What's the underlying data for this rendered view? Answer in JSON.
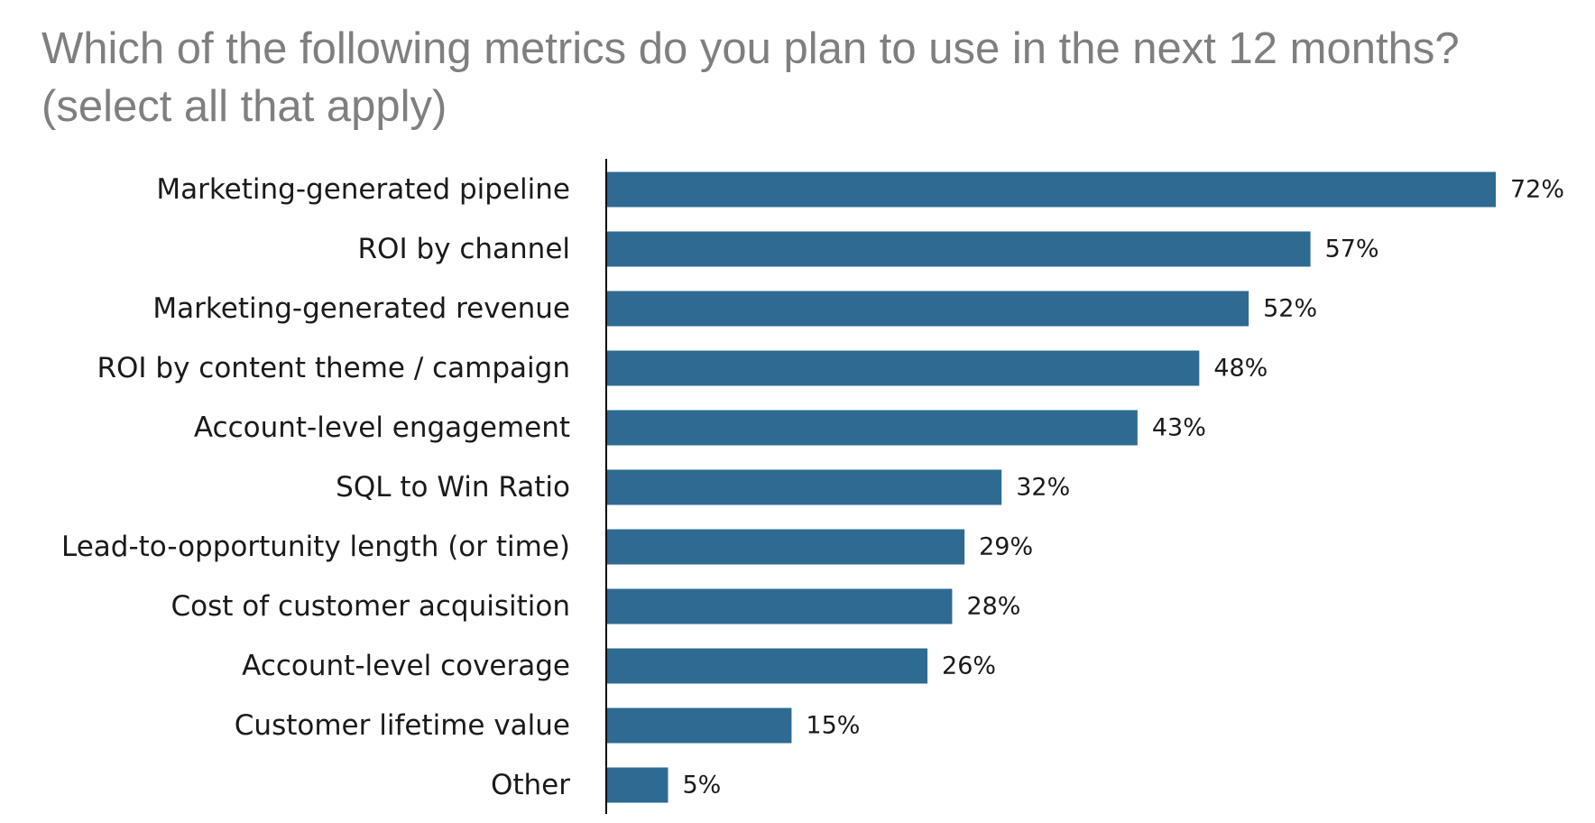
{
  "chart_data": {
    "type": "bar",
    "orientation": "horizontal",
    "title_lines": [
      "Which of the following metrics do you plan to use in the next 12 months?",
      "(select all that apply)"
    ],
    "categories": [
      "Marketing-generated pipeline",
      "ROI by channel",
      "Marketing-generated revenue",
      "ROI by content theme / campaign",
      "Account-level engagement",
      "SQL to Win Ratio",
      "Lead-to-opportunity length (or time)",
      "Cost of customer acquisition",
      "Account-level coverage",
      "Customer lifetime value",
      "Other"
    ],
    "values": [
      72,
      57,
      52,
      48,
      43,
      32,
      29,
      28,
      26,
      15,
      5
    ],
    "value_labels": [
      "72%",
      "57%",
      "52%",
      "48%",
      "43%",
      "32%",
      "29%",
      "28%",
      "26%",
      "15%",
      "5%"
    ],
    "unit": "%",
    "bar_color": "#2e6a92",
    "axis_color": "#000000",
    "title_color": "#7f7f7f",
    "xlim": [
      0,
      72
    ],
    "grid": false,
    "legend": "none"
  }
}
